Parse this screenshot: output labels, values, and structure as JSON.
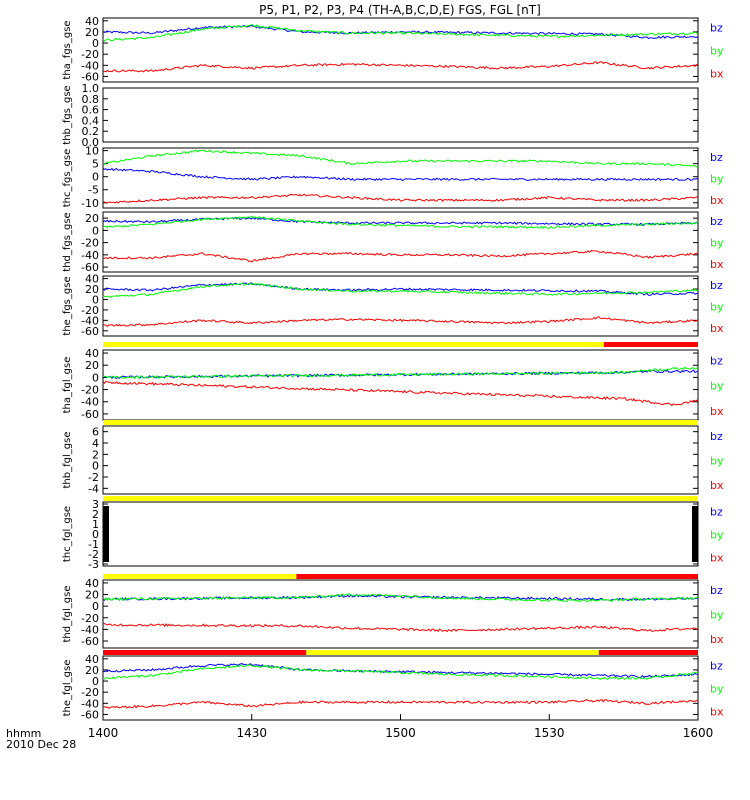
{
  "title": "P5, P1, P2, P3, P4 (TH-A,B,C,D,E) FGS, FGL [nT]",
  "xaxis": {
    "ticks": [
      "1400",
      "1430",
      "1500",
      "1530",
      "1600"
    ],
    "left_label": "hhmm",
    "date_label": "2010 Dec 28"
  },
  "colors": {
    "bx": "#ff0000",
    "by": "#00ff00",
    "bz": "#0000ff",
    "flag_yellow": "#ffff00",
    "flag_red": "#ff0000"
  },
  "chart_data": [
    {
      "type": "line",
      "name": "tha_fgs_gse",
      "ylabel": "tha_fgs_gse",
      "yticks": [
        "40",
        "20",
        "0",
        "-20",
        "-40",
        "-60"
      ],
      "ylim": [
        -70,
        45
      ],
      "legend": [
        "bz",
        "by",
        "bx"
      ],
      "x": [
        "1400",
        "1410",
        "1420",
        "1430",
        "1440",
        "1450",
        "1500",
        "1510",
        "1520",
        "1530",
        "1540",
        "1550",
        "1600"
      ],
      "series": [
        {
          "name": "bz",
          "values": [
            20,
            18,
            28,
            30,
            20,
            18,
            20,
            19,
            18,
            17,
            16,
            10,
            12
          ]
        },
        {
          "name": "by",
          "values": [
            5,
            10,
            25,
            32,
            22,
            18,
            18,
            16,
            14,
            12,
            14,
            16,
            18
          ]
        },
        {
          "name": "bx",
          "values": [
            -50,
            -50,
            -40,
            -45,
            -40,
            -38,
            -40,
            -42,
            -45,
            -42,
            -35,
            -45,
            -40
          ]
        }
      ]
    },
    {
      "type": "line",
      "name": "thb_fgs_gse",
      "ylabel": "thb_fgs_gse",
      "yticks": [
        "1.0",
        "0.8",
        "0.6",
        "0.4",
        "0.2",
        "0.0"
      ],
      "ylim": [
        0,
        1
      ],
      "legend": [],
      "x": [],
      "series": []
    },
    {
      "type": "line",
      "name": "thc_fgs_gse",
      "ylabel": "thc_fgs_gse",
      "yticks": [
        "10",
        "5",
        "0",
        "-5",
        "-10"
      ],
      "ylim": [
        -12,
        11
      ],
      "legend": [
        "bz",
        "by",
        "bx"
      ],
      "x": [
        "1400",
        "1410",
        "1420",
        "1430",
        "1440",
        "1450",
        "1500",
        "1510",
        "1520",
        "1530",
        "1540",
        "1550",
        "1600"
      ],
      "series": [
        {
          "name": "bz",
          "values": [
            3,
            2,
            0,
            -1,
            0,
            -1,
            -1,
            -1,
            -1,
            -1,
            -1,
            -1,
            -1
          ]
        },
        {
          "name": "by",
          "values": [
            5,
            8,
            10,
            9,
            8,
            5,
            6,
            6,
            6,
            6,
            5,
            5,
            4
          ]
        },
        {
          "name": "bx",
          "values": [
            -10,
            -9,
            -8,
            -8,
            -7,
            -8,
            -9,
            -9,
            -9,
            -8,
            -9,
            -9,
            -8
          ]
        }
      ]
    },
    {
      "type": "line",
      "name": "thd_fgs_gse",
      "ylabel": "thd_fgs_gse",
      "yticks": [
        "20",
        "0",
        "-20",
        "-40",
        "-60"
      ],
      "ylim": [
        -68,
        30
      ],
      "legend": [
        "bz",
        "by",
        "bx"
      ],
      "x": [
        "1400",
        "1410",
        "1420",
        "1430",
        "1440",
        "1450",
        "1500",
        "1510",
        "1520",
        "1530",
        "1540",
        "1550",
        "1600"
      ],
      "series": [
        {
          "name": "bz",
          "values": [
            15,
            14,
            18,
            20,
            14,
            12,
            12,
            12,
            12,
            11,
            10,
            10,
            12
          ]
        },
        {
          "name": "by",
          "values": [
            5,
            10,
            18,
            22,
            15,
            10,
            8,
            6,
            6,
            5,
            8,
            10,
            12
          ]
        },
        {
          "name": "bx",
          "values": [
            -45,
            -45,
            -38,
            -50,
            -38,
            -38,
            -40,
            -40,
            -42,
            -38,
            -34,
            -44,
            -38
          ]
        }
      ]
    },
    {
      "type": "line",
      "name": "the_fgs_gse",
      "ylabel": "the_fgs_gse",
      "yticks": [
        "40",
        "20",
        "0",
        "-20",
        "-40",
        "-60"
      ],
      "ylim": [
        -70,
        45
      ],
      "legend": [
        "bz",
        "by",
        "bx"
      ],
      "x": [
        "1400",
        "1410",
        "1420",
        "1430",
        "1440",
        "1450",
        "1500",
        "1510",
        "1520",
        "1530",
        "1540",
        "1550",
        "1600"
      ],
      "series": [
        {
          "name": "bz",
          "values": [
            20,
            18,
            28,
            30,
            20,
            18,
            20,
            19,
            18,
            17,
            16,
            10,
            12
          ]
        },
        {
          "name": "by",
          "values": [
            5,
            10,
            25,
            30,
            20,
            16,
            16,
            14,
            12,
            10,
            12,
            14,
            18
          ]
        },
        {
          "name": "bx",
          "values": [
            -50,
            -48,
            -40,
            -45,
            -40,
            -38,
            -40,
            -42,
            -45,
            -42,
            -35,
            -45,
            -40
          ]
        }
      ]
    },
    {
      "type": "line",
      "name": "tha_fgl_gse",
      "ylabel": "tha_fgl_gse",
      "yticks": [
        "40",
        "20",
        "0",
        "-20",
        "-40",
        "-60"
      ],
      "ylim": [
        -70,
        45
      ],
      "legend": [
        "bz",
        "by",
        "bx"
      ],
      "x": [
        "1400",
        "1545",
        "1550",
        "1555",
        "1600"
      ],
      "series": [
        {
          "name": "bz",
          "values": [
            0,
            8,
            10,
            10,
            10
          ]
        },
        {
          "name": "by",
          "values": [
            0,
            8,
            12,
            14,
            16
          ]
        },
        {
          "name": "bx",
          "values": [
            -8,
            -35,
            -40,
            -45,
            -38
          ]
        }
      ]
    },
    {
      "type": "line",
      "name": "thb_fgl_gse",
      "ylabel": "thb_fgl_gse",
      "yticks": [
        "6",
        "4",
        "2",
        "0",
        "-2",
        "-4"
      ],
      "ylim": [
        -5,
        7
      ],
      "legend": [
        "bz",
        "by",
        "bx"
      ],
      "x": [],
      "series": []
    },
    {
      "type": "line",
      "name": "thc_fgl_gse",
      "ylabel": "thc_fgl_gse",
      "yticks": [
        "3",
        "2",
        "1",
        "0",
        "-1",
        "-2",
        "-3"
      ],
      "ylim": [
        -3.2,
        3.2
      ],
      "legend": [
        "bz",
        "by",
        "bx"
      ],
      "x": [],
      "series": []
    },
    {
      "type": "line",
      "name": "thd_fgl_gse",
      "ylabel": "thd_fgl_gse",
      "yticks": [
        "40",
        "20",
        "0",
        "-20",
        "-40",
        "-60"
      ],
      "ylim": [
        -72,
        45
      ],
      "legend": [
        "bz",
        "by",
        "bx"
      ],
      "x": [
        "1400",
        "1440",
        "1450",
        "1500",
        "1510",
        "1520",
        "1530",
        "1540",
        "1550",
        "1600"
      ],
      "series": [
        {
          "name": "bz",
          "values": [
            12,
            15,
            18,
            16,
            15,
            14,
            13,
            12,
            12,
            13
          ]
        },
        {
          "name": "by",
          "values": [
            12,
            15,
            20,
            18,
            14,
            12,
            10,
            10,
            12,
            14
          ]
        },
        {
          "name": "bx",
          "values": [
            -32,
            -34,
            -38,
            -40,
            -42,
            -40,
            -38,
            -36,
            -42,
            -38
          ]
        }
      ]
    },
    {
      "type": "line",
      "name": "the_fgl_gse",
      "ylabel": "the_fgl_gse",
      "yticks": [
        "40",
        "20",
        "0",
        "-20",
        "-40",
        "-60"
      ],
      "ylim": [
        -70,
        45
      ],
      "legend": [
        "bz",
        "by",
        "bx"
      ],
      "x": [
        "1400",
        "1410",
        "1420",
        "1430",
        "1440",
        "1450",
        "1500",
        "1510",
        "1520",
        "1530",
        "1540",
        "1550",
        "1600"
      ],
      "series": [
        {
          "name": "bz",
          "values": [
            18,
            20,
            28,
            30,
            20,
            18,
            17,
            15,
            14,
            12,
            10,
            8,
            12
          ]
        },
        {
          "name": "by",
          "values": [
            5,
            10,
            22,
            28,
            20,
            18,
            15,
            12,
            10,
            8,
            5,
            5,
            15
          ]
        },
        {
          "name": "bx",
          "values": [
            -48,
            -45,
            -38,
            -45,
            -38,
            -38,
            -38,
            -38,
            -38,
            -38,
            -35,
            -40,
            -35
          ]
        }
      ]
    }
  ]
}
